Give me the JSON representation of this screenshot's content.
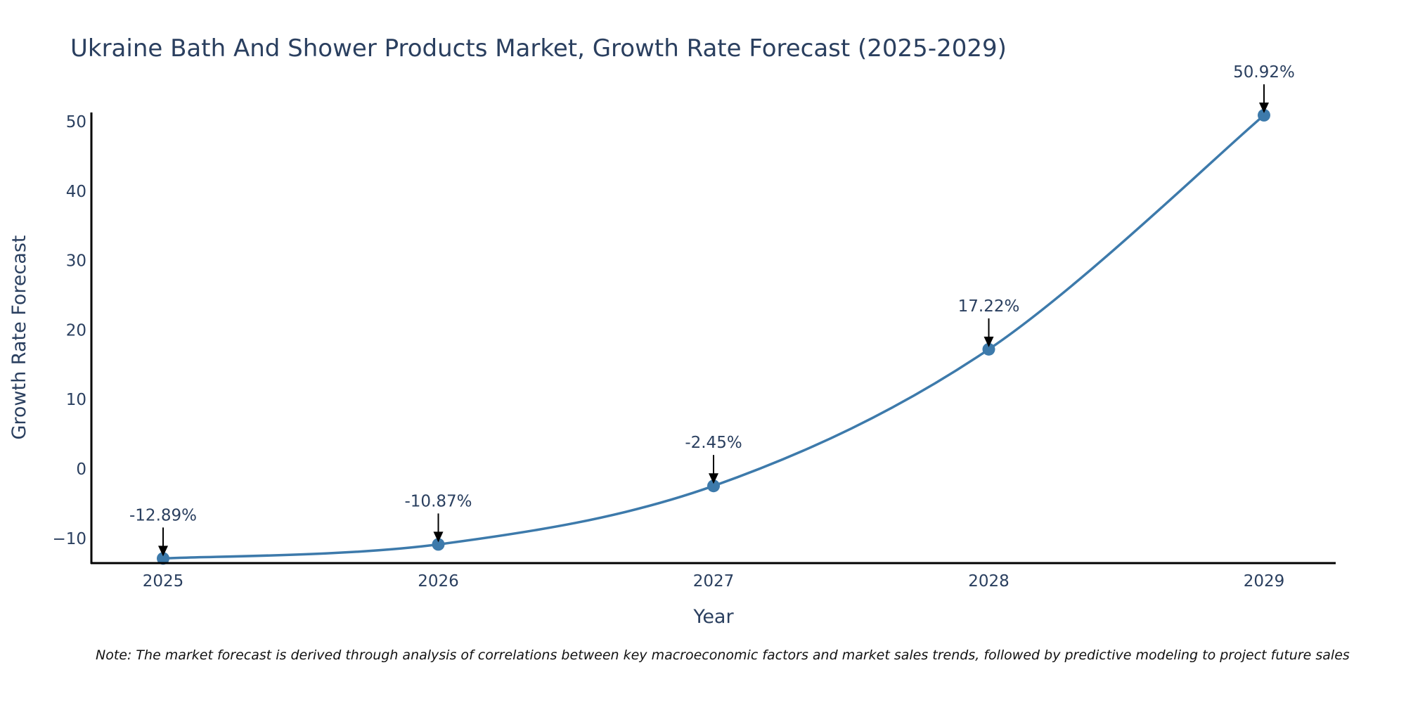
{
  "chart_data": {
    "type": "line",
    "title": "Ukraine Bath And Shower Products Market, Growth Rate Forecast (2025-2029)",
    "xlabel": "Year",
    "ylabel": "Growth Rate Forecast",
    "x": [
      "2025",
      "2026",
      "2027",
      "2028",
      "2029"
    ],
    "series": [
      {
        "name": "Growth Rate Forecast",
        "values": [
          -12.89,
          -10.87,
          -2.45,
          17.22,
          50.92
        ],
        "color": "#3d7aab",
        "line_shape": "spline",
        "markers": true
      }
    ],
    "annotations": [
      "-12.89%",
      "-10.87%",
      "-2.45%",
      "17.22%",
      "50.92%"
    ],
    "y_ticks": [
      -10,
      0,
      10,
      20,
      30,
      40,
      50
    ],
    "y_tick_labels": [
      "−10",
      "0",
      "10",
      "20",
      "30",
      "40",
      "50"
    ],
    "x_tick_labels": [
      "2025",
      "2026",
      "2027",
      "2028",
      "2029"
    ],
    "ylim": [
      -13.7,
      51.5
    ],
    "xlim": [
      2024.77,
      2029.26
    ],
    "grid": false,
    "legend": "none"
  },
  "note": "Note: The market forecast is derived through analysis of correlations between key macroeconomic factors and market sales trends, followed by predictive modeling to project future sales"
}
